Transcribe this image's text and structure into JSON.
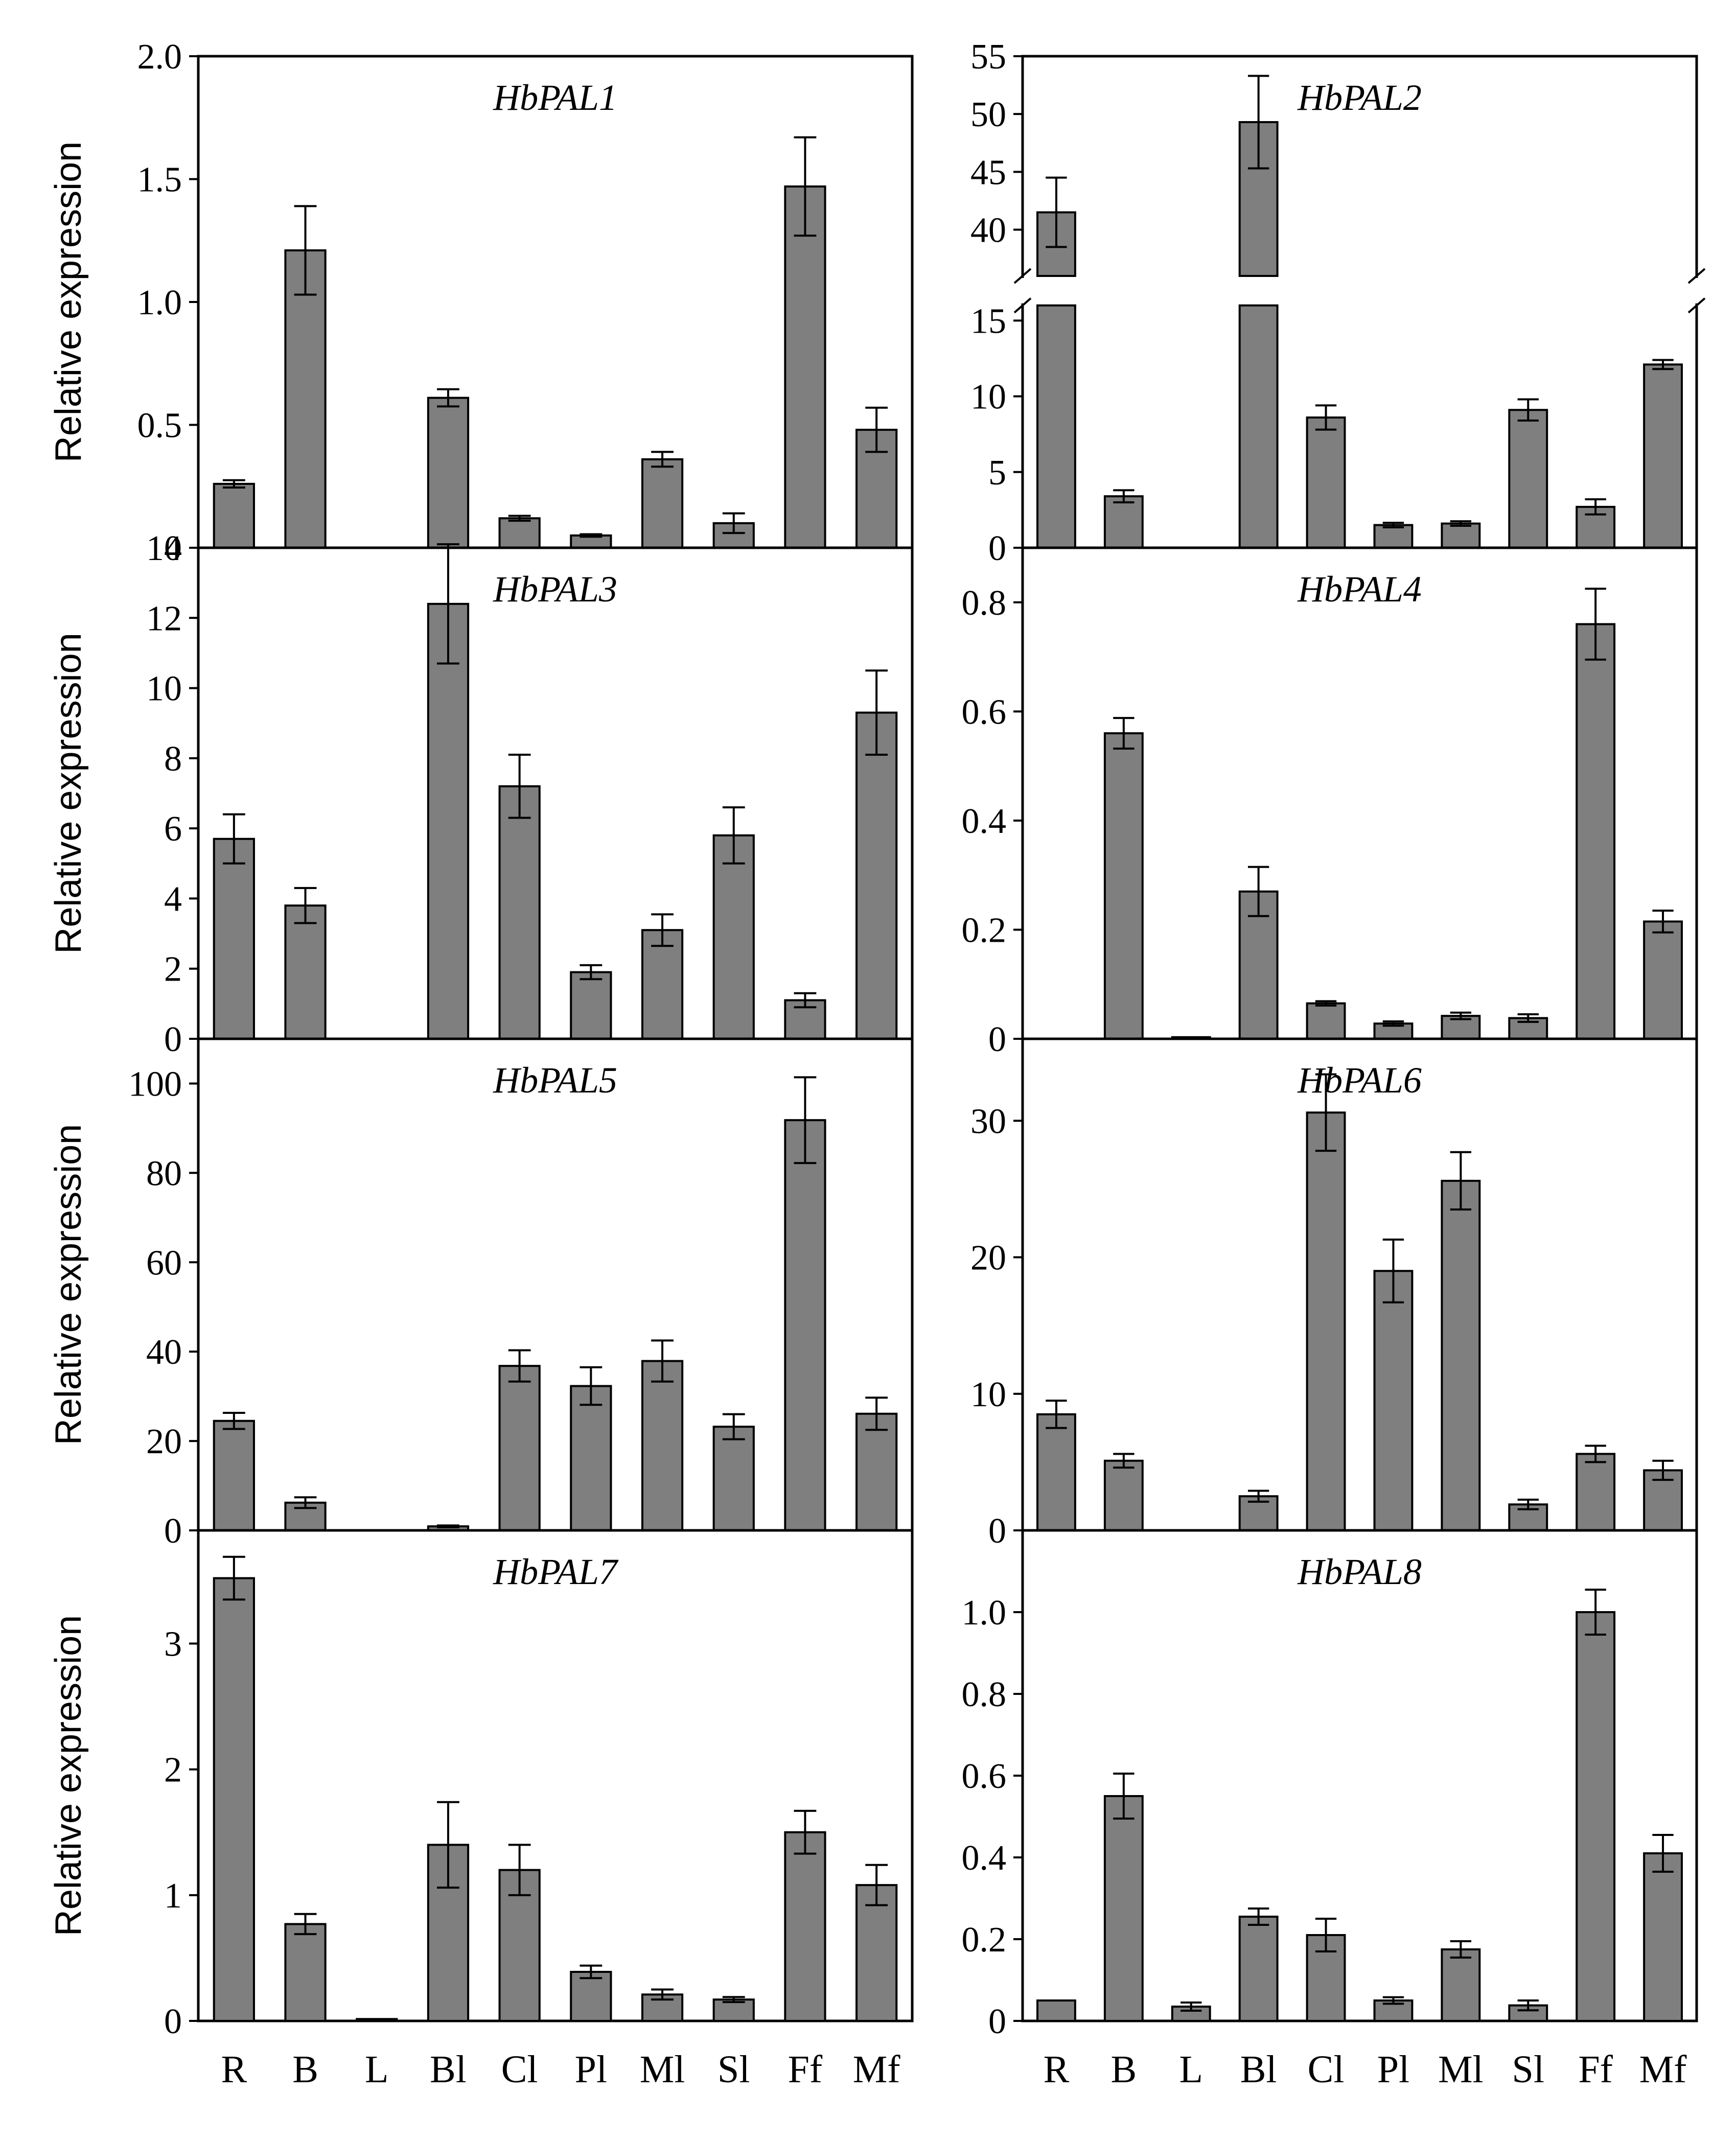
{
  "chart_data": {
    "type": "bar",
    "layout": "4 rows x 2 columns grid of panels",
    "categories": [
      "R",
      "B",
      "L",
      "Bl",
      "Cl",
      "Pl",
      "Ml",
      "Sl",
      "Ff",
      "Mf"
    ],
    "ylabel": "Relative expression",
    "colors": {
      "bar": "#7f7f7f",
      "edge": "#000000"
    },
    "panels": [
      {
        "title": "HbPAL1",
        "ylim": [
          0,
          2.0
        ],
        "ticks": [
          0,
          0.5,
          1.0,
          1.5,
          2.0
        ],
        "tick_labels": [
          "0",
          "0.5",
          "1.0",
          "1.5",
          "2.0"
        ],
        "values": [
          0.26,
          1.21,
          0.0,
          0.61,
          0.12,
          0.05,
          0.36,
          0.1,
          1.47,
          0.48
        ],
        "errors": [
          0.015,
          0.18,
          0.0,
          0.035,
          0.01,
          0.005,
          0.03,
          0.04,
          0.2,
          0.09
        ]
      },
      {
        "title": "HbPAL2",
        "broken_axis": true,
        "lower_ylim": [
          0,
          16
        ],
        "upper_ylim": [
          36,
          55
        ],
        "lower_ticks": [
          0,
          5,
          10,
          15
        ],
        "upper_ticks": [
          40,
          45,
          50,
          55
        ],
        "tick_labels_lower": [
          "0",
          "5",
          "10",
          "15"
        ],
        "tick_labels_upper": [
          "40",
          "45",
          "50",
          "55"
        ],
        "values": [
          41.5,
          3.4,
          0.0,
          49.3,
          8.6,
          1.5,
          1.6,
          9.1,
          2.7,
          12.1
        ],
        "errors": [
          3.0,
          0.4,
          0.0,
          4.0,
          0.8,
          0.15,
          0.15,
          0.7,
          0.5,
          0.3
        ]
      },
      {
        "title": "HbPAL3",
        "ylim": [
          0,
          14
        ],
        "ticks": [
          0,
          2,
          4,
          6,
          8,
          10,
          12,
          14
        ],
        "tick_labels": [
          "0",
          "2",
          "4",
          "6",
          "8",
          "10",
          "12",
          "14"
        ],
        "values": [
          5.7,
          3.8,
          0.0,
          12.4,
          7.2,
          1.9,
          3.1,
          5.8,
          1.1,
          9.3
        ],
        "errors": [
          0.7,
          0.5,
          0.0,
          1.7,
          0.9,
          0.2,
          0.45,
          0.8,
          0.2,
          1.2
        ]
      },
      {
        "title": "HbPAL4",
        "ylim": [
          0,
          0.9
        ],
        "ticks": [
          0,
          0.2,
          0.4,
          0.6,
          0.8
        ],
        "tick_labels": [
          "0",
          "0.2",
          "0.4",
          "0.6",
          "0.8"
        ],
        "values": [
          0.0,
          0.56,
          0.003,
          0.27,
          0.065,
          0.028,
          0.042,
          0.038,
          0.76,
          0.215
        ],
        "errors": [
          0.0,
          0.028,
          0.0,
          0.045,
          0.004,
          0.004,
          0.006,
          0.007,
          0.065,
          0.02
        ]
      },
      {
        "title": "HbPAL5",
        "ylim": [
          0,
          110
        ],
        "ticks": [
          0,
          20,
          40,
          60,
          80,
          100
        ],
        "tick_labels": [
          "0",
          "20",
          "40",
          "60",
          "80",
          "100"
        ],
        "values": [
          24.5,
          6.2,
          0.0,
          0.9,
          36.8,
          32.3,
          37.9,
          23.2,
          91.8,
          26.1
        ],
        "errors": [
          1.8,
          1.2,
          0.0,
          0.2,
          3.5,
          4.2,
          4.6,
          2.8,
          9.6,
          3.6
        ]
      },
      {
        "title": "HbPAL6",
        "ylim": [
          0,
          36
        ],
        "ticks": [
          0,
          10,
          20,
          30
        ],
        "tick_labels": [
          "0",
          "10",
          "20",
          "30"
        ],
        "values": [
          8.5,
          5.1,
          0.0,
          2.5,
          30.6,
          19.0,
          25.6,
          1.9,
          5.6,
          4.4
        ],
        "errors": [
          1.0,
          0.5,
          0.0,
          0.4,
          2.8,
          2.3,
          2.1,
          0.35,
          0.6,
          0.7
        ]
      },
      {
        "title": "HbPAL7",
        "ylim": [
          0,
          3.9
        ],
        "ticks": [
          0,
          1,
          2,
          3
        ],
        "tick_labels": [
          "0",
          "1",
          "2",
          "3"
        ],
        "values": [
          3.52,
          0.77,
          0.015,
          1.4,
          1.2,
          0.39,
          0.21,
          0.17,
          1.5,
          1.08
        ],
        "errors": [
          0.17,
          0.08,
          0.0,
          0.34,
          0.2,
          0.05,
          0.04,
          0.02,
          0.17,
          0.16
        ]
      },
      {
        "title": "HbPAL8",
        "ylim": [
          0,
          1.2
        ],
        "ticks": [
          0,
          0.2,
          0.4,
          0.6,
          0.8,
          1.0
        ],
        "tick_labels": [
          "0",
          "0.2",
          "0.4",
          "0.6",
          "0.8",
          "1.0"
        ],
        "values": [
          0.05,
          0.55,
          0.035,
          0.255,
          0.21,
          0.05,
          0.175,
          0.038,
          1.0,
          0.41
        ],
        "errors": [
          0.0,
          0.055,
          0.01,
          0.02,
          0.04,
          0.008,
          0.02,
          0.012,
          0.055,
          0.045
        ]
      }
    ]
  }
}
